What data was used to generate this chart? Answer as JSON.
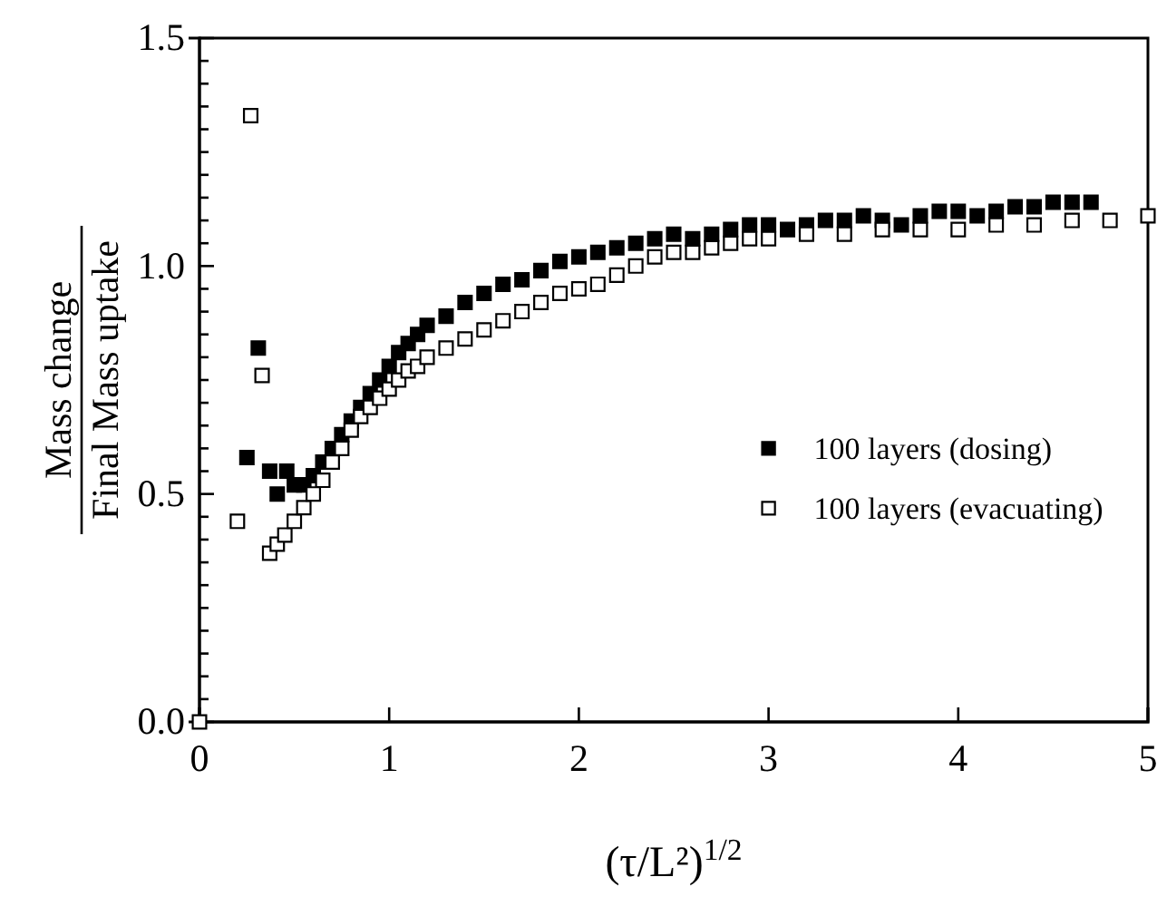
{
  "chart_data": {
    "type": "scatter",
    "xlabel": "(τ/L²)$^{1/2}$",
    "ylabel": "Mass change\nFinal Mass uptake",
    "xlim": [
      0,
      5
    ],
    "ylim": [
      0,
      1.5
    ],
    "xticks": [
      0,
      1,
      2,
      3,
      4,
      5
    ],
    "yticks": [
      {
        "value": 0,
        "label": "0.0"
      },
      {
        "value": 0.05,
        "label": null
      },
      {
        "value": 0.1,
        "label": null
      },
      {
        "value": 0.15,
        "label": null
      },
      {
        "value": 0.2,
        "label": null
      },
      {
        "value": 0.25,
        "label": null
      },
      {
        "value": 0.3,
        "label": null
      },
      {
        "value": 0.35,
        "label": null
      },
      {
        "value": 0.4,
        "label": null
      },
      {
        "value": 0.45,
        "label": null
      },
      {
        "value": 0.5,
        "label": "0.5"
      },
      {
        "value": 0.55,
        "label": null
      },
      {
        "value": 0.6,
        "label": null
      },
      {
        "value": 0.65,
        "label": null
      },
      {
        "value": 0.7,
        "label": null
      },
      {
        "value": 0.75,
        "label": null
      },
      {
        "value": 0.8,
        "label": null
      },
      {
        "value": 0.85,
        "label": null
      },
      {
        "value": 0.9,
        "label": null
      },
      {
        "value": 0.95,
        "label": null
      },
      {
        "value": 1,
        "label": "1.0"
      },
      {
        "value": 1.05,
        "label": null
      },
      {
        "value": 1.1,
        "label": null
      },
      {
        "value": 1.15,
        "label": null
      },
      {
        "value": 1.2,
        "label": null
      },
      {
        "value": 1.25,
        "label": null
      },
      {
        "value": 1.3,
        "label": null
      },
      {
        "value": 1.35,
        "label": null
      },
      {
        "value": 1.4,
        "label": null
      },
      {
        "value": 1.45,
        "label": null
      },
      {
        "value": 1.5,
        "label": "1.5"
      }
    ],
    "grid": false,
    "legend": "right",
    "marker": "square",
    "series": [
      {
        "name": "100 layers (dosing)",
        "color": "#000000",
        "x": [
          0.25,
          0.31,
          0.37,
          0.41,
          0.46,
          0.5,
          0.55,
          0.6,
          0.65,
          0.7,
          0.75,
          0.8,
          0.85,
          0.9,
          0.95,
          1.0,
          1.05,
          1.1,
          1.15,
          1.2,
          1.3,
          1.4,
          1.5,
          1.6,
          1.7,
          1.8,
          1.9,
          2.0,
          2.1,
          2.2,
          2.3,
          2.4,
          2.5,
          2.6,
          2.7,
          2.8,
          2.9,
          3.0,
          3.1,
          3.2,
          3.3,
          3.4,
          3.5,
          3.6,
          3.7,
          3.8,
          3.9,
          4.0,
          4.1,
          4.2,
          4.3,
          4.4,
          4.5,
          4.6,
          4.7
        ],
        "values": [
          0.58,
          0.82,
          0.55,
          0.5,
          0.55,
          0.52,
          0.52,
          0.54,
          0.57,
          0.6,
          0.63,
          0.66,
          0.69,
          0.72,
          0.75,
          0.78,
          0.81,
          0.83,
          0.85,
          0.87,
          0.89,
          0.92,
          0.94,
          0.96,
          0.97,
          0.99,
          1.01,
          1.02,
          1.03,
          1.04,
          1.05,
          1.06,
          1.07,
          1.06,
          1.07,
          1.08,
          1.09,
          1.09,
          1.08,
          1.09,
          1.1,
          1.1,
          1.11,
          1.1,
          1.09,
          1.11,
          1.12,
          1.12,
          1.11,
          1.12,
          1.13,
          1.13,
          1.14,
          1.14,
          1.14
        ]
      },
      {
        "name": "100 layers (evacuating)",
        "color": "#ffffff",
        "x": [
          0,
          0.2,
          0.27,
          0.33,
          0.37,
          0.41,
          0.45,
          0.5,
          0.55,
          0.6,
          0.65,
          0.7,
          0.75,
          0.8,
          0.85,
          0.9,
          0.95,
          1.0,
          1.05,
          1.1,
          1.15,
          1.2,
          1.3,
          1.4,
          1.5,
          1.6,
          1.7,
          1.8,
          1.9,
          2.0,
          2.1,
          2.2,
          2.3,
          2.4,
          2.5,
          2.6,
          2.7,
          2.8,
          2.9,
          3.0,
          3.2,
          3.4,
          3.6,
          3.8,
          4.0,
          4.2,
          4.4,
          4.6,
          4.8,
          5.0
        ],
        "values": [
          0,
          0.44,
          1.33,
          0.76,
          0.37,
          0.39,
          0.41,
          0.44,
          0.47,
          0.5,
          0.53,
          0.57,
          0.6,
          0.64,
          0.67,
          0.69,
          0.71,
          0.73,
          0.75,
          0.77,
          0.78,
          0.8,
          0.82,
          0.84,
          0.86,
          0.88,
          0.9,
          0.92,
          0.94,
          0.95,
          0.96,
          0.98,
          1.0,
          1.02,
          1.03,
          1.03,
          1.04,
          1.05,
          1.06,
          1.06,
          1.07,
          1.07,
          1.08,
          1.08,
          1.08,
          1.09,
          1.09,
          1.1,
          1.1,
          1.11
        ]
      }
    ]
  }
}
